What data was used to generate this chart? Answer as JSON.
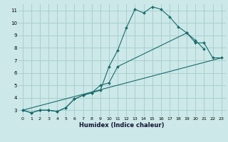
{
  "xlabel": "Humidex (Indice chaleur)",
  "bg_color": "#cce8e8",
  "grid_color": "#aacfcf",
  "line_color": "#1a6b6b",
  "line1_x": [
    0,
    1,
    2,
    3,
    4,
    5,
    6,
    7,
    8,
    9,
    10,
    11,
    12,
    13,
    14,
    15,
    16,
    17,
    18,
    19,
    20,
    21
  ],
  "line1_y": [
    3.0,
    2.8,
    3.0,
    3.0,
    2.9,
    3.2,
    3.9,
    4.2,
    4.4,
    4.6,
    6.5,
    7.8,
    9.6,
    11.1,
    10.8,
    11.3,
    11.1,
    10.5,
    9.7,
    9.2,
    8.6,
    7.9
  ],
  "line2_x": [
    0,
    1,
    2,
    3,
    4,
    5,
    6,
    7,
    8,
    9,
    10,
    11
  ],
  "line2_y": [
    3.0,
    2.8,
    3.0,
    3.0,
    2.9,
    3.2,
    3.9,
    4.2,
    4.4,
    5.0,
    5.2,
    6.5
  ],
  "line2b_x": [
    19,
    20,
    21,
    22,
    23
  ],
  "line2b_y": [
    9.2,
    8.4,
    8.4,
    7.2,
    7.2
  ],
  "line3_x": [
    0,
    23
  ],
  "line3_y": [
    3.0,
    7.2
  ],
  "xlim": [
    -0.5,
    23.5
  ],
  "ylim": [
    2.5,
    11.5
  ],
  "xticks": [
    0,
    1,
    2,
    3,
    4,
    5,
    6,
    7,
    8,
    9,
    10,
    11,
    12,
    13,
    14,
    15,
    16,
    17,
    18,
    19,
    20,
    21,
    22,
    23
  ],
  "yticks": [
    3,
    4,
    5,
    6,
    7,
    8,
    9,
    10,
    11
  ],
  "tick_fontsize": 4.5,
  "xlabel_fontsize": 6.0
}
